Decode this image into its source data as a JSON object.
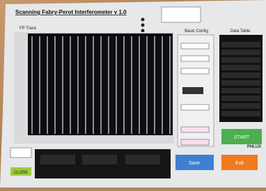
{
  "header": {
    "title": "Scanning Fabry-Perot Interferometer v 1.0"
  },
  "plot": {
    "title": "FP Trace"
  },
  "config": {
    "title": "Basic Config"
  },
  "table": {
    "title": "Data Table"
  },
  "buttons": {
    "start": "START",
    "save": "Save",
    "exit": "Exit",
    "close": "CLOSE"
  },
  "logo": "PHLUX"
}
